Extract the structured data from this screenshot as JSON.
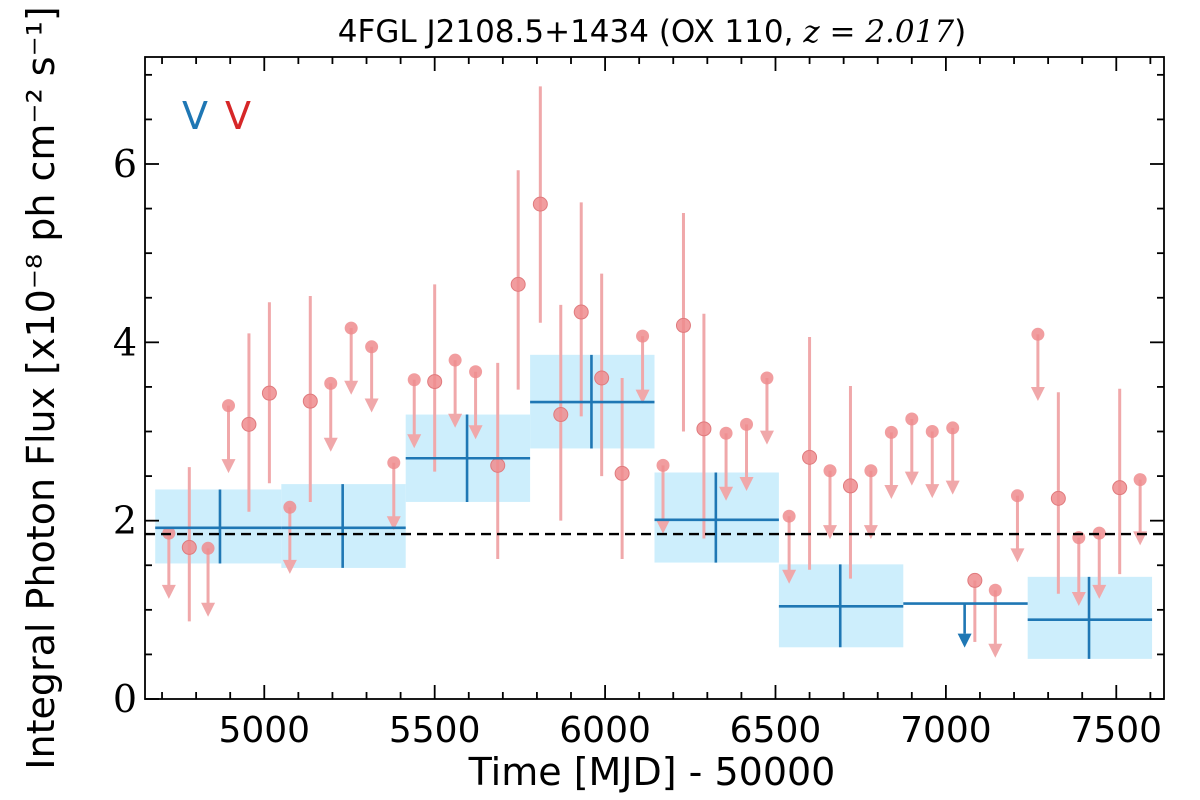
{
  "chart_data": {
    "type": "scatter",
    "title": "4FGL J2108.5+1434 (OX 110, z = 2.017)",
    "title_main": "4FGL J2108.5+1434 (OX 110, ",
    "title_math": "z = 2.017",
    "title_end": ")",
    "xlabel": "Time [MJD] - 50000",
    "ylabel": "Integral Photon Flux [x10⁻⁸ ph cm⁻² s⁻¹]",
    "xlim": [
      4650,
      7640
    ],
    "ylim": [
      0,
      7.2
    ],
    "x_ticks": [
      5000,
      5500,
      6000,
      6500,
      7000,
      7500
    ],
    "x_tick_labels": [
      "5000",
      "5500",
      "6000",
      "6500",
      "7000",
      "7500"
    ],
    "y_ticks": [
      0,
      2,
      4,
      6
    ],
    "y_tick_labels": [
      "0",
      "2",
      "4",
      "6"
    ],
    "mean_flux": 1.85,
    "legend": [
      {
        "label": "V",
        "color": "#1f77b4"
      },
      {
        "label": "V",
        "color": "#d62728"
      }
    ],
    "colors": {
      "blue": "#1f77b4",
      "band": "#cdeefc",
      "red_marker": "#ee8c8e",
      "red_line": "#f0a8aa"
    },
    "long_bins": [
      {
        "x_start": 4680,
        "x_end": 5050,
        "x": 4870,
        "y": 1.92,
        "y_low": 1.52,
        "y_high": 2.35
      },
      {
        "x_start": 5050,
        "x_end": 5415,
        "x": 5230,
        "y": 1.92,
        "y_low": 1.47,
        "y_high": 2.41
      },
      {
        "x_start": 5415,
        "x_end": 5780,
        "x": 5595,
        "y": 2.7,
        "y_low": 2.21,
        "y_high": 3.19
      },
      {
        "x_start": 5780,
        "x_end": 6145,
        "x": 5960,
        "y": 3.33,
        "y_low": 2.81,
        "y_high": 3.86
      },
      {
        "x_start": 6145,
        "x_end": 6510,
        "x": 6325,
        "y": 2.01,
        "y_low": 1.53,
        "y_high": 2.54
      },
      {
        "x_start": 6510,
        "x_end": 6875,
        "x": 6690,
        "y": 1.04,
        "y_low": 0.58,
        "y_high": 1.51
      },
      {
        "x_start": 7240,
        "x_end": 7605,
        "x": 7420,
        "y": 0.89,
        "y_low": 0.45,
        "y_high": 1.37
      }
    ],
    "long_upper_limits": [
      {
        "x_start": 6875,
        "x_end": 7240,
        "x": 7055,
        "y": 1.07
      }
    ],
    "short_detections": [
      {
        "x": 4780,
        "y": 1.7,
        "y_low": 0.87,
        "y_high": 2.6
      },
      {
        "x": 4955,
        "y": 3.08,
        "y_low": 2.1,
        "y_high": 4.1
      },
      {
        "x": 5015,
        "y": 3.43,
        "y_low": 2.42,
        "y_high": 4.45
      },
      {
        "x": 5135,
        "y": 3.34,
        "y_low": 2.21,
        "y_high": 4.52
      },
      {
        "x": 5500,
        "y": 3.56,
        "y_low": 2.55,
        "y_high": 4.65
      },
      {
        "x": 5685,
        "y": 2.62,
        "y_low": 1.57,
        "y_high": 3.77
      },
      {
        "x": 5745,
        "y": 4.65,
        "y_low": 3.47,
        "y_high": 5.93
      },
      {
        "x": 5810,
        "y": 5.55,
        "y_low": 4.22,
        "y_high": 6.87
      },
      {
        "x": 5870,
        "y": 3.19,
        "y_low": 2.0,
        "y_high": 4.42
      },
      {
        "x": 5930,
        "y": 4.34,
        "y_low": 3.17,
        "y_high": 5.57
      },
      {
        "x": 5990,
        "y": 3.6,
        "y_low": 2.5,
        "y_high": 4.77
      },
      {
        "x": 6050,
        "y": 2.53,
        "y_low": 1.57,
        "y_high": 3.6
      },
      {
        "x": 6230,
        "y": 4.19,
        "y_low": 3.0,
        "y_high": 5.45
      },
      {
        "x": 6290,
        "y": 3.03,
        "y_low": 1.8,
        "y_high": 4.32
      },
      {
        "x": 6600,
        "y": 2.71,
        "y_low": 1.45,
        "y_high": 4.06
      },
      {
        "x": 6720,
        "y": 2.39,
        "y_low": 1.35,
        "y_high": 3.51
      },
      {
        "x": 7085,
        "y": 1.33,
        "y_low": 0.64,
        "y_high": 1.33
      },
      {
        "x": 7330,
        "y": 2.25,
        "y_low": 1.18,
        "y_high": 3.44
      },
      {
        "x": 7510,
        "y": 2.37,
        "y_low": 1.4,
        "y_high": 3.48
      }
    ],
    "short_upper_limits": [
      {
        "x": 4720,
        "y": 1.86,
        "y_arrow": 1.19
      },
      {
        "x": 4835,
        "y": 1.69,
        "y_arrow": 0.99
      },
      {
        "x": 4895,
        "y": 3.29,
        "y_arrow": 2.6
      },
      {
        "x": 5075,
        "y": 2.15,
        "y_arrow": 1.47
      },
      {
        "x": 5195,
        "y": 3.54,
        "y_arrow": 2.84
      },
      {
        "x": 5255,
        "y": 4.16,
        "y_arrow": 3.48
      },
      {
        "x": 5315,
        "y": 3.95,
        "y_arrow": 3.28
      },
      {
        "x": 5380,
        "y": 2.65,
        "y_arrow": 1.96
      },
      {
        "x": 5440,
        "y": 3.58,
        "y_arrow": 2.88
      },
      {
        "x": 5560,
        "y": 3.8,
        "y_arrow": 3.11
      },
      {
        "x": 5620,
        "y": 3.67,
        "y_arrow": 2.98
      },
      {
        "x": 6110,
        "y": 4.07,
        "y_arrow": 3.38
      },
      {
        "x": 6170,
        "y": 2.62,
        "y_arrow": 1.92
      },
      {
        "x": 6355,
        "y": 2.98,
        "y_arrow": 2.29
      },
      {
        "x": 6415,
        "y": 3.08,
        "y_arrow": 2.4
      },
      {
        "x": 6475,
        "y": 3.6,
        "y_arrow": 2.92
      },
      {
        "x": 6540,
        "y": 2.05,
        "y_arrow": 1.36
      },
      {
        "x": 6660,
        "y": 2.56,
        "y_arrow": 1.86
      },
      {
        "x": 6780,
        "y": 2.56,
        "y_arrow": 1.86
      },
      {
        "x": 6840,
        "y": 2.99,
        "y_arrow": 2.31
      },
      {
        "x": 6900,
        "y": 3.14,
        "y_arrow": 2.46
      },
      {
        "x": 6960,
        "y": 3.0,
        "y_arrow": 2.32
      },
      {
        "x": 7020,
        "y": 3.04,
        "y_arrow": 2.36
      },
      {
        "x": 7145,
        "y": 1.22,
        "y_arrow": 0.53
      },
      {
        "x": 7210,
        "y": 2.28,
        "y_arrow": 1.6
      },
      {
        "x": 7270,
        "y": 4.09,
        "y_arrow": 3.41
      },
      {
        "x": 7390,
        "y": 1.81,
        "y_arrow": 1.11
      },
      {
        "x": 7450,
        "y": 1.86,
        "y_arrow": 1.19
      },
      {
        "x": 7570,
        "y": 2.46,
        "y_arrow": 1.79
      }
    ]
  }
}
